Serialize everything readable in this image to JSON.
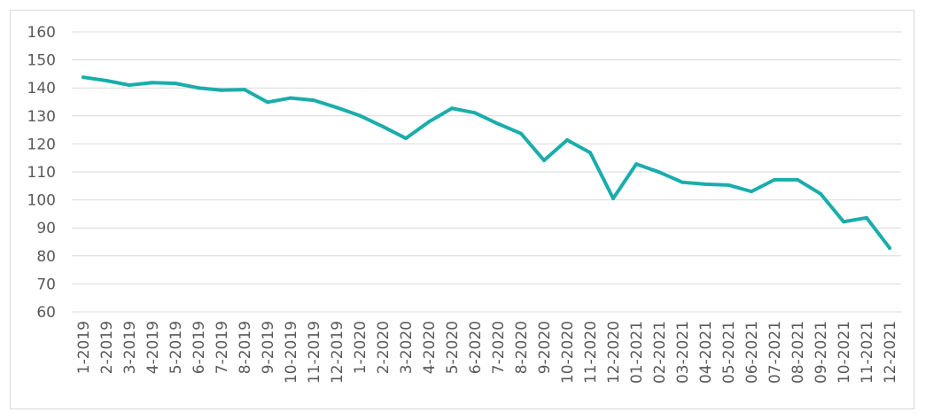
{
  "chart_data": {
    "type": "line",
    "title": "",
    "xlabel": "",
    "ylabel": "",
    "ylim": [
      60,
      160
    ],
    "y_ticks": [
      "60",
      "70",
      "80",
      "90",
      "100",
      "110",
      "120",
      "130",
      "140",
      "150",
      "160"
    ],
    "grid": true,
    "legend": "none",
    "categories": [
      "1-2019",
      "2-2019",
      "3-2019",
      "4-2019",
      "5-2019",
      "6-2019",
      "7-2019",
      "8-2019",
      "9-2019",
      "10-2019",
      "11-2019",
      "12-2019",
      "1-2020",
      "2-2020",
      "3-2020",
      "4-2020",
      "5-2020",
      "6-2020",
      "7-2020",
      "8-2020",
      "9-2020",
      "10-2020",
      "11-2020",
      "12-2020",
      "01-2021",
      "02-2021",
      "03-2021",
      "04-2021",
      "05-2021",
      "06-2021",
      "07-2021",
      "08-2021",
      "09-2021",
      "10-2021",
      "11-2021",
      "12-2021"
    ],
    "series": [
      {
        "color": "#1aadab",
        "values": [
          143.8,
          142.6,
          141.0,
          141.9,
          141.6,
          140.0,
          139.2,
          139.4,
          134.9,
          136.4,
          135.6,
          133.0,
          130.1,
          126.2,
          122.0,
          127.9,
          132.7,
          131.1,
          127.2,
          123.7,
          114.1,
          121.4,
          116.9,
          100.5,
          112.8,
          109.9,
          106.3,
          105.6,
          105.3,
          103.0,
          107.2,
          107.2,
          102.2,
          92.2,
          93.6,
          82.8
        ]
      }
    ]
  }
}
